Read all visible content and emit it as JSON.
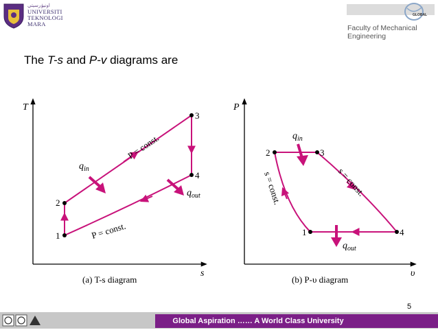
{
  "header": {
    "university_top": "اونيۏرسيتي",
    "university_lines": [
      "UNIVERSITI",
      "TEKNOLOGI",
      "MARA"
    ],
    "faculty": "Faculty of Mechanical Engineering",
    "global_badge": "GLOBAL"
  },
  "slide": {
    "title_prefix": "The ",
    "title_ts": "T-s",
    "title_mid": " and ",
    "title_pv": "P-v",
    "title_suffix": " diagrams are",
    "page_number": "5"
  },
  "ts_diagram": {
    "axis_y": "T",
    "axis_x": "s",
    "caption": "(a) T-s diagram",
    "points": [
      "1",
      "2",
      "3",
      "4"
    ],
    "upper_label": "P = const.",
    "lower_label": "P = const.",
    "q_in": "q",
    "q_in_sub": "in",
    "q_out": "q",
    "q_out_sub": "out"
  },
  "pv_diagram": {
    "axis_y": "P",
    "axis_x": "υ",
    "caption": "(b) P-υ diagram",
    "points": [
      "1",
      "2",
      "3",
      "4"
    ],
    "left_label": "s = const.",
    "right_label": "s = const.",
    "q_in": "q",
    "q_in_sub": "in",
    "q_out": "q",
    "q_out_sub": "out"
  },
  "footer": {
    "slogan": "Global Aspiration …… A World Class University"
  },
  "colors": {
    "curve": "#c8127a",
    "footer_purple": "#7b1f87",
    "footer_gray": "#c7c7c7"
  }
}
